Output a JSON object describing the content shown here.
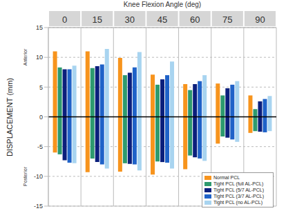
{
  "chart_data": {
    "type": "bar",
    "title": "Knee Flexion Angle (deg)",
    "y_label": "DISPLACEMENT (mm)",
    "annotations": [
      "Anterior",
      "Posterior"
    ],
    "categories": [
      "0",
      "15",
      "30",
      "45",
      "60",
      "75",
      "90"
    ],
    "series": [
      {
        "name": "Normal PCL",
        "color": "#f7941d",
        "values": [
          [
            -6,
            11
          ],
          [
            -9.3,
            11
          ],
          [
            -9.2,
            9.9
          ],
          [
            -9.7,
            7.1
          ],
          [
            -8.8,
            5.5
          ],
          [
            -4.5,
            5.6
          ],
          [
            -2.7,
            3.6
          ]
        ]
      },
      {
        "name": "Tight PCL (full AL-PCL)",
        "color": "#2e9a6e",
        "values": [
          [
            -6.3,
            8.3
          ],
          [
            -7,
            8.2
          ],
          [
            -7.8,
            7
          ],
          [
            -7.5,
            5.4
          ],
          [
            -6.5,
            4.5
          ],
          [
            -3.3,
            3.6
          ],
          [
            -2.4,
            1.3
          ]
        ]
      },
      {
        "name": "Tight PCL (5/7 AL-PCL)",
        "color": "#0b1f7c",
        "values": [
          [
            -7.3,
            8
          ],
          [
            -7.6,
            8.5
          ],
          [
            -7.9,
            7.4
          ],
          [
            -7.6,
            6.3
          ],
          [
            -6.8,
            5.5
          ],
          [
            -3.5,
            4.8
          ],
          [
            -2.5,
            2.6
          ]
        ]
      },
      {
        "name": "Tight PCL (3/7 AL-PCL)",
        "color": "#1f62c8",
        "values": [
          [
            -7.7,
            8
          ],
          [
            -8,
            8.8
          ],
          [
            -8,
            8.3
          ],
          [
            -7.7,
            7
          ],
          [
            -7,
            6
          ],
          [
            -3.8,
            5.4
          ],
          [
            -2.6,
            3
          ]
        ]
      },
      {
        "name": "Tight PCL (no AL-PCL)",
        "color": "#a8d4f0",
        "values": [
          [
            -7.8,
            8.6
          ],
          [
            -8.7,
            11.4
          ],
          [
            -9,
            10.9
          ],
          [
            -8.7,
            9.3
          ],
          [
            -7.4,
            7
          ],
          [
            -4.2,
            6
          ],
          [
            -2.4,
            3.5
          ]
        ]
      }
    ],
    "ylim": [
      -15,
      15
    ],
    "yticks": [
      -15,
      -10,
      -5,
      0,
      5,
      10,
      15
    ],
    "grid": true,
    "legend": "lower right"
  }
}
